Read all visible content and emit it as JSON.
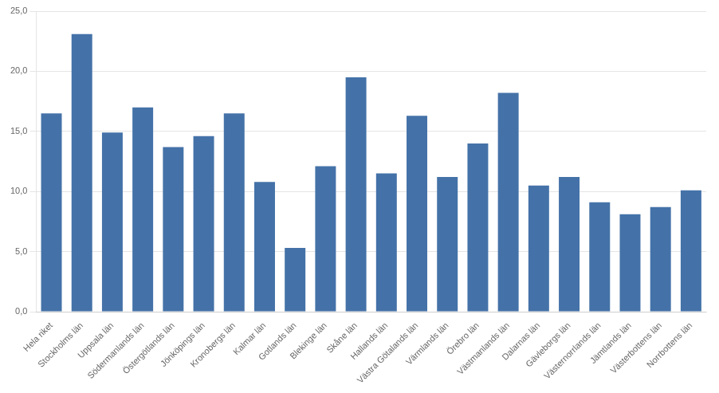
{
  "chart_data": {
    "type": "bar",
    "categories": [
      "Hela riket",
      "Stockholms län",
      "Uppsala län",
      "Södermanlands län",
      "Östergötlands län",
      "Jönköpings län",
      "Kronobergs län",
      "Kalmar län",
      "Gotlands län",
      "Blekinge län",
      "Skåne län",
      "Hallands län",
      "Västra Götalands län",
      "Värmlands län",
      "Örebro län",
      "Västmanlands län",
      "Dalarnas län",
      "Gävleborgs län",
      "Västernorrlands län",
      "Jämtlands län",
      "Västerbottens län",
      "Norrbottens län"
    ],
    "values": [
      16.5,
      23.1,
      14.9,
      17.0,
      13.7,
      14.6,
      16.5,
      10.8,
      5.3,
      12.1,
      19.5,
      11.5,
      16.3,
      11.2,
      14.0,
      18.2,
      10.5,
      11.2,
      9.1,
      8.1,
      8.7,
      10.1
    ],
    "color": "#4472a8",
    "ylim": [
      0,
      25
    ],
    "yticks": [
      {
        "value": 0,
        "label": "0,0"
      },
      {
        "value": 5,
        "label": "5,0"
      },
      {
        "value": 10,
        "label": "10,0"
      },
      {
        "value": 15,
        "label": "15,0"
      },
      {
        "value": 20,
        "label": "20,0"
      },
      {
        "value": 25,
        "label": "25,0"
      }
    ],
    "grid": true
  }
}
